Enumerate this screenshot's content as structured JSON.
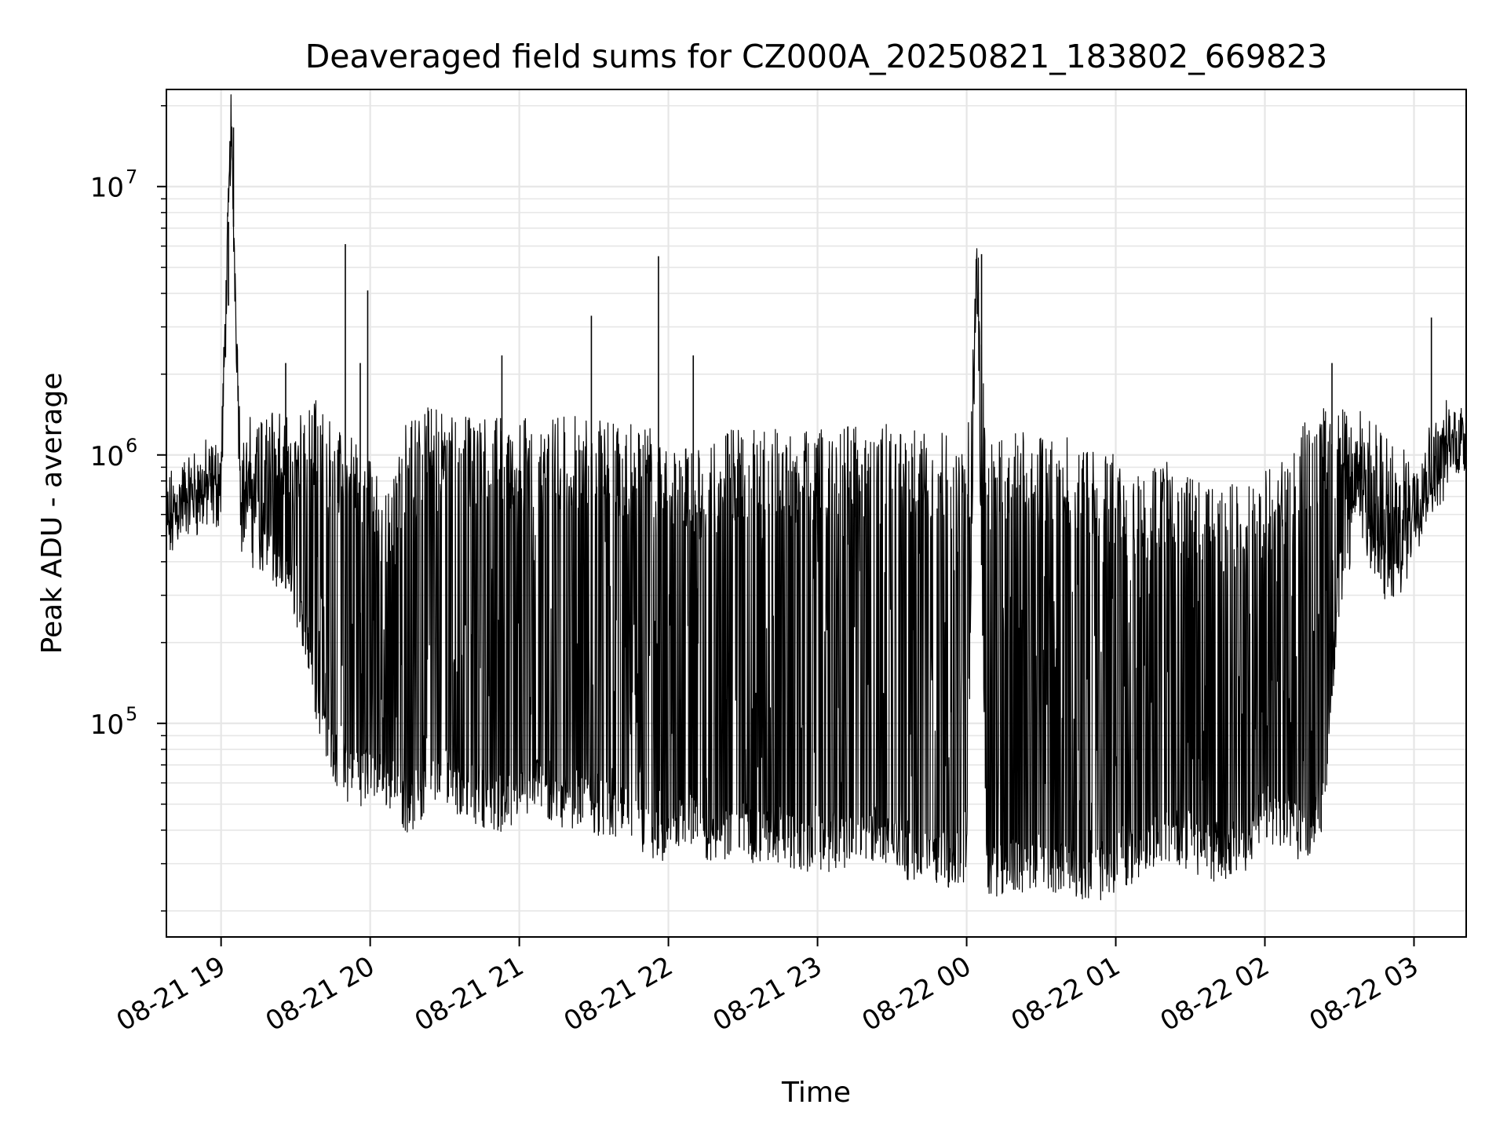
{
  "chart_data": {
    "type": "line",
    "title": "Deaveraged field sums for CZ000A_20250821_183802_669823",
    "xlabel": "Time",
    "ylabel": "Peak ADU - average",
    "yscale": "log",
    "grid": true,
    "legend": "none",
    "line_color": "#000000",
    "grid_color": "#e6e6e6",
    "xlim": [
      "2025-08-21 18:38",
      "2025-08-22 03:21"
    ],
    "ylim": [
      16000,
      23000000
    ],
    "x_ticks": [
      {
        "value": "2025-08-21 19:00",
        "label": "08-21 19"
      },
      {
        "value": "2025-08-21 20:00",
        "label": "08-21 20"
      },
      {
        "value": "2025-08-21 21:00",
        "label": "08-21 21"
      },
      {
        "value": "2025-08-21 22:00",
        "label": "08-21 22"
      },
      {
        "value": "2025-08-21 23:00",
        "label": "08-21 23"
      },
      {
        "value": "2025-08-22 00:00",
        "label": "08-22 00"
      },
      {
        "value": "2025-08-22 01:00",
        "label": "08-22 01"
      },
      {
        "value": "2025-08-22 02:00",
        "label": "08-22 02"
      },
      {
        "value": "2025-08-22 03:00",
        "label": "08-22 03"
      }
    ],
    "y_ticks": [
      {
        "value": 100000,
        "base": "10",
        "exp": "5"
      },
      {
        "value": 1000000,
        "base": "10",
        "exp": "6"
      },
      {
        "value": 10000000,
        "base": "10",
        "exp": "7"
      }
    ],
    "series": [
      {
        "x": [
          "2025-08-21 18:38",
          "2025-08-21 18:45",
          "2025-08-21 18:53",
          "2025-08-21 19:00",
          "2025-08-21 19:04",
          "2025-08-21 19:08",
          "2025-08-21 19:15",
          "2025-08-21 19:23",
          "2025-08-21 19:30",
          "2025-08-21 19:38",
          "2025-08-21 19:45",
          "2025-08-21 19:53",
          "2025-08-21 20:00",
          "2025-08-21 20:08",
          "2025-08-21 20:15",
          "2025-08-21 20:23",
          "2025-08-21 20:30",
          "2025-08-21 20:38",
          "2025-08-21 20:45",
          "2025-08-21 20:53",
          "2025-08-21 21:00",
          "2025-08-21 21:08",
          "2025-08-21 21:15",
          "2025-08-21 21:23",
          "2025-08-21 21:30",
          "2025-08-21 21:38",
          "2025-08-21 21:45",
          "2025-08-21 21:53",
          "2025-08-21 22:00",
          "2025-08-21 22:08",
          "2025-08-21 22:15",
          "2025-08-21 22:23",
          "2025-08-21 22:30",
          "2025-08-21 22:38",
          "2025-08-21 22:45",
          "2025-08-21 22:53",
          "2025-08-21 23:00",
          "2025-08-21 23:08",
          "2025-08-21 23:15",
          "2025-08-21 23:23",
          "2025-08-21 23:30",
          "2025-08-21 23:38",
          "2025-08-21 23:45",
          "2025-08-21 23:53",
          "2025-08-22 00:00",
          "2025-08-22 00:04",
          "2025-08-22 00:08",
          "2025-08-22 00:15",
          "2025-08-22 00:23",
          "2025-08-22 00:30",
          "2025-08-22 00:38",
          "2025-08-22 00:45",
          "2025-08-22 00:53",
          "2025-08-22 01:00",
          "2025-08-22 01:08",
          "2025-08-22 01:15",
          "2025-08-22 01:23",
          "2025-08-22 01:30",
          "2025-08-22 01:38",
          "2025-08-22 01:45",
          "2025-08-22 01:53",
          "2025-08-22 02:00",
          "2025-08-22 02:08",
          "2025-08-22 02:15",
          "2025-08-22 02:23",
          "2025-08-22 02:30",
          "2025-08-22 02:38",
          "2025-08-22 02:45",
          "2025-08-22 02:53",
          "2025-08-22 03:00",
          "2025-08-22 03:08",
          "2025-08-22 03:15",
          "2025-08-22 03:21"
        ],
        "baseline": [
          400000,
          620000,
          600000,
          650000,
          16600000,
          550000,
          420000,
          350000,
          280000,
          120000,
          70000,
          55000,
          60000,
          55000,
          45000,
          50000,
          60000,
          50000,
          48000,
          45000,
          48000,
          55000,
          45000,
          48000,
          45000,
          42000,
          40000,
          35000,
          33000,
          38000,
          35000,
          35000,
          37000,
          33000,
          35000,
          32000,
          32000,
          33000,
          33000,
          35000,
          32000,
          30000,
          30000,
          28000,
          28000,
          5600000,
          27000,
          26000,
          27000,
          28000,
          27000,
          26000,
          25000,
          27000,
          30000,
          32000,
          35000,
          33000,
          30000,
          30000,
          33000,
          42000,
          40000,
          35000,
          40000,
          300000,
          600000,
          350000,
          300000,
          500000,
          750000,
          950000,
          1050000
        ],
        "peak": [
          700000,
          800000,
          900000,
          1000000,
          16600000,
          950000,
          1300000,
          1500000,
          1400000,
          1600000,
          1300000,
          1200000,
          1000000,
          700000,
          1400000,
          1500000,
          1500000,
          1400000,
          1350000,
          1400000,
          1400000,
          1350000,
          1400000,
          1400000,
          1400000,
          1350000,
          1300000,
          1350000,
          1000000,
          1200000,
          1000000,
          1250000,
          1250000,
          1250000,
          1250000,
          1250000,
          1250000,
          1300000,
          1300000,
          1300000,
          1300000,
          1300000,
          1250000,
          1200000,
          1100000,
          5600000,
          1150000,
          1150000,
          1300000,
          1200000,
          1200000,
          1150000,
          1050000,
          1000000,
          900000,
          900000,
          1000000,
          900000,
          800000,
          800000,
          800000,
          900000,
          1000000,
          1300000,
          1500000,
          1500000,
          1400000,
          1300000,
          1100000,
          900000,
          1100000,
          1300000,
          1300000
        ]
      }
    ],
    "spikes": [
      {
        "x": "2025-08-21 19:05",
        "y": 16600000
      },
      {
        "x": "2025-08-21 19:03",
        "y": 3600000
      },
      {
        "x": "2025-08-21 19:26",
        "y": 2200000
      },
      {
        "x": "2025-08-21 19:50",
        "y": 6100000
      },
      {
        "x": "2025-08-21 19:56",
        "y": 2200000
      },
      {
        "x": "2025-08-21 19:59",
        "y": 4100000
      },
      {
        "x": "2025-08-21 20:53",
        "y": 2350000
      },
      {
        "x": "2025-08-21 21:29",
        "y": 3300000
      },
      {
        "x": "2025-08-21 21:56",
        "y": 5500000
      },
      {
        "x": "2025-08-21 22:10",
        "y": 2350000
      },
      {
        "x": "2025-08-22 00:06",
        "y": 5600000
      },
      {
        "x": "2025-08-22 02:27",
        "y": 2200000
      },
      {
        "x": "2025-08-22 03:07",
        "y": 3250000
      }
    ]
  }
}
